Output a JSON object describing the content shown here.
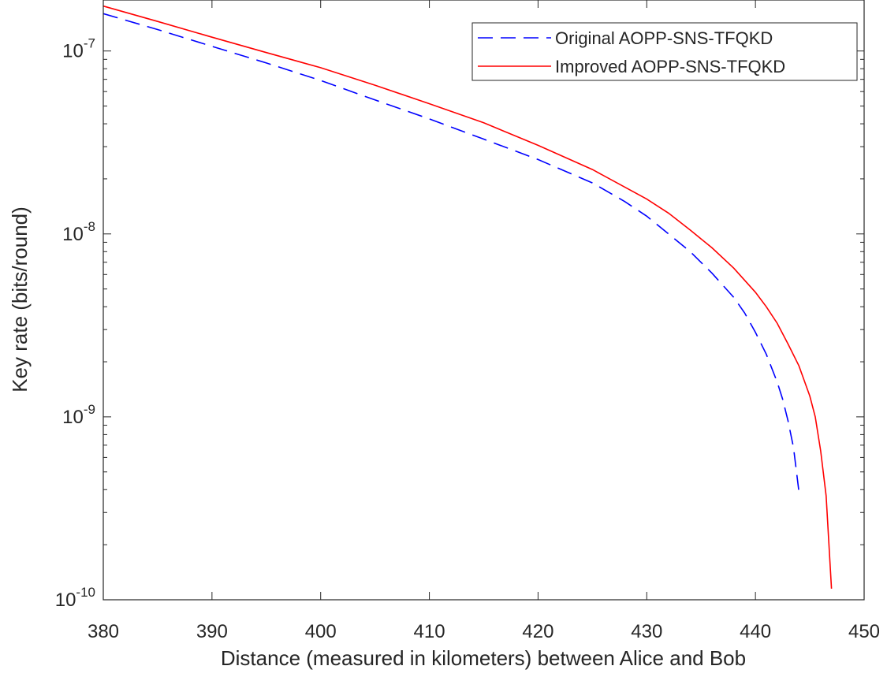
{
  "chart_data": {
    "type": "line",
    "title": "",
    "xlabel": "Distance (measured in kilometers) between Alice and Bob",
    "ylabel": "Key rate (bits/round)",
    "xlim": [
      380,
      450
    ],
    "ylim": [
      1e-10,
      1.9e-07
    ],
    "yscale": "log",
    "grid": false,
    "legend_position": "top-right",
    "x_ticks": [
      "380",
      "390",
      "400",
      "410",
      "420",
      "430",
      "440",
      "450"
    ],
    "y_ticks": [
      {
        "base": "10",
        "exp": "-10",
        "value": 1e-10
      },
      {
        "base": "10",
        "exp": "-9",
        "value": 1e-09
      },
      {
        "base": "10",
        "exp": "-8",
        "value": 1e-08
      },
      {
        "base": "10",
        "exp": "-7",
        "value": 1e-07
      }
    ],
    "series": [
      {
        "name": "Original AOPP-SNS-TFQKD",
        "color": "#0000ff",
        "style": "dashed",
        "x": [
          380,
          385,
          390,
          395,
          400,
          405,
          410,
          415,
          420,
          425,
          428,
          430,
          432,
          434,
          436,
          438,
          439,
          440,
          441,
          442,
          442.5,
          443,
          443.5,
          444
        ],
        "y": [
          1.6e-07,
          1.31e-07,
          1.06e-07,
          8.6e-08,
          6.9e-08,
          5.4e-08,
          4.25e-08,
          3.3e-08,
          2.55e-08,
          1.9e-08,
          1.5e-08,
          1.25e-08,
          1e-08,
          8e-09,
          6.1e-09,
          4.5e-09,
          3.7e-09,
          2.9e-09,
          2.2e-09,
          1.55e-09,
          1.25e-09,
          9.5e-10,
          6.8e-10,
          3.9e-10
        ]
      },
      {
        "name": "Improved AOPP-SNS-TFQKD",
        "color": "#ff0000",
        "style": "solid",
        "x": [
          380,
          385,
          390,
          395,
          400,
          405,
          410,
          415,
          420,
          425,
          430,
          432,
          434,
          436,
          438,
          440,
          441,
          442,
          443,
          444,
          445,
          445.5,
          446,
          446.5,
          447
        ],
        "y": [
          1.76e-07,
          1.45e-07,
          1.19e-07,
          9.8e-08,
          8.1e-08,
          6.5e-08,
          5.15e-08,
          4.05e-08,
          3.05e-08,
          2.25e-08,
          1.55e-08,
          1.3e-08,
          1.05e-08,
          8.4e-09,
          6.5e-09,
          4.8e-09,
          4e-09,
          3.25e-09,
          2.5e-09,
          1.9e-09,
          1.3e-09,
          1e-09,
          6.5e-10,
          3.7e-10,
          1.15e-10
        ]
      }
    ]
  }
}
